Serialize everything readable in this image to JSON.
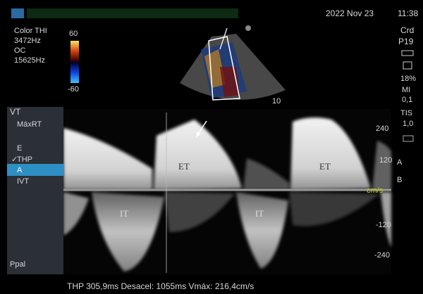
{
  "status_bar": {
    "date": "2022 Nov 23",
    "time": "11:38"
  },
  "settings": {
    "mode": "Color THI",
    "frequency": "3472Hz",
    "option": "OC",
    "prf": "15625Hz"
  },
  "color_scale": {
    "max": "60",
    "min": "-60"
  },
  "right_panel": {
    "preset": "Crd",
    "probe": "P19",
    "power": "18%",
    "mi_label": "MI",
    "mi_value": "0,1",
    "tis_label": "TIS",
    "tis_value": "1,0"
  },
  "sector": {
    "depth": "10"
  },
  "menu": {
    "title": "VT",
    "items": [
      "MáxRT",
      "E",
      "THP",
      "A",
      "IVT"
    ],
    "footer": "Ppal"
  },
  "spectrum": {
    "ejection_labels": [
      "ET",
      "ET"
    ],
    "filling_labels": [
      "IT",
      "IT"
    ],
    "scale": [
      "240",
      "120",
      "-120",
      "-240"
    ],
    "unit": "cm/s",
    "markers": [
      "A",
      "B"
    ]
  },
  "measurement": "THP 305,9ms Desacel: 1055ms Vmáx: 216,4cm/s"
}
